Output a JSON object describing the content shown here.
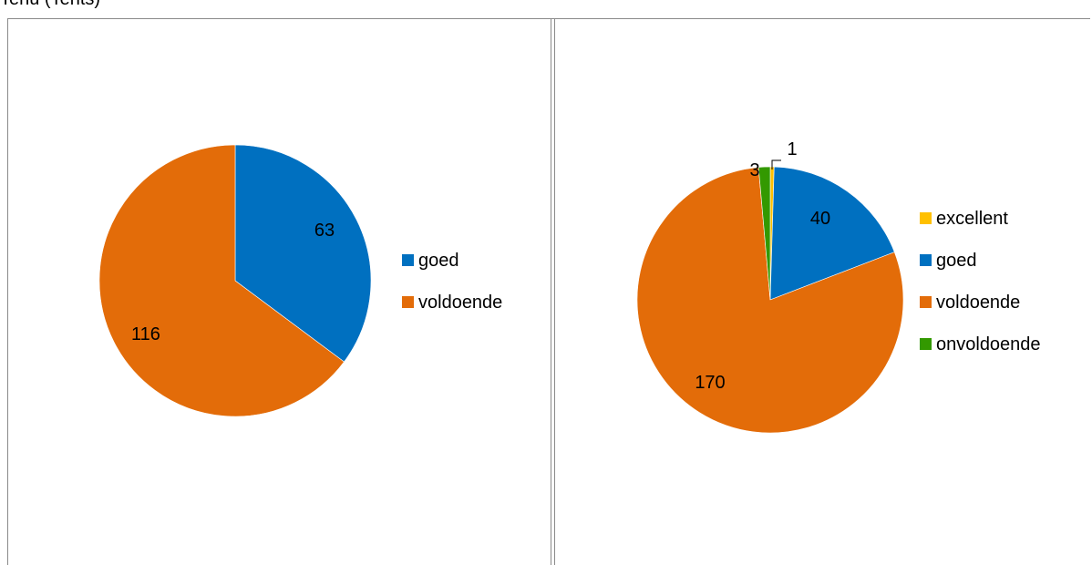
{
  "caption": "Tenu (Tents)",
  "colors": {
    "excellent": "#FFC000",
    "goed": "#0070C0",
    "voldoende": "#E36C09",
    "onvoldoende": "#339900"
  },
  "chart_data": [
    {
      "type": "pie",
      "categories": [
        "goed",
        "voldoende"
      ],
      "values": [
        63,
        116
      ],
      "legend": "right"
    },
    {
      "type": "pie",
      "categories": [
        "excellent",
        "goed",
        "voldoende",
        "onvoldoende"
      ],
      "values": [
        1,
        40,
        170,
        3
      ],
      "legend": "right"
    }
  ]
}
